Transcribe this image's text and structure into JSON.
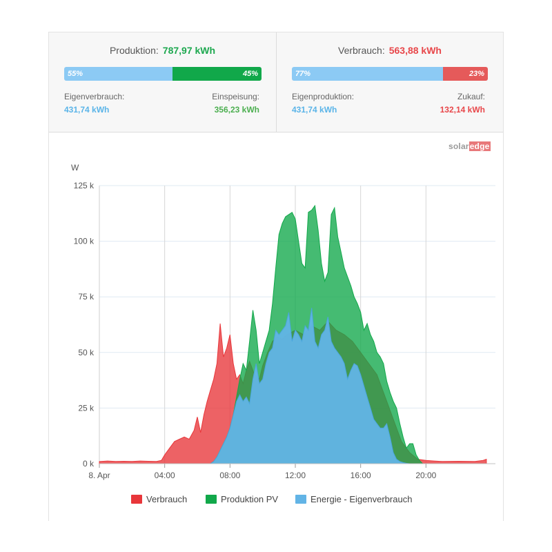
{
  "summary": {
    "production": {
      "label": "Produktion:",
      "value": "787,97 kWh",
      "self_pct_label": "55%",
      "self_pct": 55,
      "feed_pct_label": "45%",
      "feed_pct": 45,
      "self_label": "Eigenverbrauch:",
      "self_value": "431,74 kWh",
      "feed_label": "Einspeisung:",
      "feed_value": "356,23 kWh"
    },
    "consumption": {
      "label": "Verbrauch:",
      "value": "563,88 kWh",
      "self_pct_label": "77%",
      "self_pct": 77,
      "import_pct_label": "23%",
      "import_pct": 23,
      "self_label": "Eigenproduktion:",
      "self_value": "431,74 kWh",
      "import_label": "Zukauf:",
      "import_value": "132,14 kWh"
    }
  },
  "brand": {
    "part1": "solar",
    "part2": "edge"
  },
  "colors": {
    "consumption": "#e8363a",
    "production": "#11a84a",
    "self": "#62b4e6",
    "bar_blue": "#8ccaf4",
    "bar_green": "#11a84a",
    "bar_red": "#e55a5a",
    "text_blue": "#5ab4e8",
    "text_green": "#4caf50",
    "text_red": "#e8474a"
  },
  "chart_data": {
    "type": "area",
    "ylabel": "W",
    "y_unit": "W",
    "ylim": [
      0,
      125000
    ],
    "yticks": [
      0,
      25000,
      50000,
      75000,
      100000,
      125000
    ],
    "ytick_labels": [
      "0 k",
      "25 k",
      "50 k",
      "75 k",
      "100 k",
      "125 k"
    ],
    "xlim": [
      0,
      24
    ],
    "xticks": [
      0,
      4,
      8,
      12,
      16,
      20
    ],
    "xtick_labels": [
      "8. Apr",
      "04:00",
      "08:00",
      "12:00",
      "16:00",
      "20:00"
    ],
    "grid": true,
    "legend_position": "bottom",
    "series": [
      {
        "name": "Verbrauch",
        "x": [
          0,
          0.5,
          1,
          1.5,
          2,
          2.5,
          3,
          3.5,
          3.8,
          4.0,
          4.3,
          4.6,
          4.9,
          5.2,
          5.5,
          5.8,
          6.0,
          6.2,
          6.4,
          6.6,
          6.8,
          7.0,
          7.2,
          7.4,
          7.6,
          7.8,
          8.0,
          8.2,
          8.4,
          8.6,
          8.8,
          9.0,
          9.2,
          9.5,
          9.8,
          10.0,
          10.3,
          10.6,
          10.9,
          11.2,
          11.5,
          12.0,
          12.5,
          13.0,
          13.5,
          14.0,
          14.5,
          15.0,
          15.5,
          16.0,
          16.5,
          17.0,
          17.5,
          18.0,
          18.5,
          19.0,
          19.5,
          20.0,
          20.5,
          21,
          22,
          23,
          23.5,
          23.7
        ],
        "values": [
          1000,
          1200,
          1000,
          1100,
          1000,
          1200,
          1100,
          1000,
          1500,
          4000,
          7000,
          10000,
          11000,
          12000,
          11000,
          15000,
          21000,
          14000,
          22000,
          28000,
          33000,
          38000,
          45000,
          63000,
          48000,
          52000,
          58000,
          45000,
          38000,
          40000,
          36000,
          42000,
          46000,
          40000,
          38000,
          44000,
          50000,
          55000,
          57000,
          56000,
          58000,
          60000,
          58000,
          62000,
          60000,
          64000,
          60000,
          58000,
          55000,
          50000,
          45000,
          40000,
          30000,
          20000,
          10000,
          5000,
          2000,
          1500,
          1200,
          1000,
          1100,
          1000,
          1500,
          2000
        ]
      },
      {
        "name": "Produktion PV",
        "x": [
          6.8,
          7.0,
          7.2,
          7.4,
          7.6,
          7.8,
          8.0,
          8.2,
          8.4,
          8.6,
          8.8,
          9.0,
          9.2,
          9.4,
          9.6,
          9.8,
          10.0,
          10.2,
          10.4,
          10.6,
          10.8,
          11.0,
          11.2,
          11.4,
          11.6,
          11.8,
          12.0,
          12.2,
          12.4,
          12.6,
          12.8,
          13.0,
          13.2,
          13.4,
          13.6,
          13.8,
          14.0,
          14.2,
          14.4,
          14.6,
          14.8,
          15.0,
          15.2,
          15.4,
          15.6,
          15.8,
          16.0,
          16.2,
          16.4,
          16.6,
          16.8,
          17.0,
          17.2,
          17.4,
          17.6,
          17.8,
          18.0,
          18.2,
          18.4,
          18.6,
          18.8,
          19.0,
          19.2,
          19.4,
          19.6,
          19.8
        ],
        "values": [
          0,
          1000,
          3000,
          6000,
          9000,
          12000,
          16000,
          22000,
          30000,
          38000,
          45000,
          42000,
          55000,
          69000,
          60000,
          45000,
          50000,
          55000,
          60000,
          72000,
          88000,
          103000,
          108000,
          111000,
          112000,
          113000,
          110000,
          100000,
          90000,
          88000,
          113000,
          114000,
          116000,
          105000,
          90000,
          82000,
          86000,
          112000,
          115000,
          102000,
          95000,
          88000,
          84000,
          80000,
          75000,
          72000,
          68000,
          60000,
          63000,
          58000,
          55000,
          50000,
          48000,
          45000,
          37000,
          32000,
          28000,
          25000,
          18000,
          12000,
          7000,
          9000,
          9000,
          4000,
          1500,
          0
        ]
      },
      {
        "name": "Energie - Eigenverbrauch",
        "x": [
          6.8,
          7.0,
          7.2,
          7.4,
          7.6,
          7.8,
          8.0,
          8.2,
          8.4,
          8.6,
          8.8,
          9.0,
          9.2,
          9.4,
          9.6,
          9.8,
          10.0,
          10.2,
          10.4,
          10.6,
          10.8,
          11.0,
          11.2,
          11.4,
          11.6,
          11.8,
          12.0,
          12.2,
          12.4,
          12.6,
          12.8,
          13.0,
          13.2,
          13.4,
          13.6,
          13.8,
          14.0,
          14.2,
          14.4,
          14.6,
          14.8,
          15.0,
          15.2,
          15.4,
          15.6,
          15.8,
          16.0,
          16.2,
          16.4,
          16.6,
          16.8,
          17.0,
          17.2,
          17.4,
          17.6,
          17.8,
          18.0,
          18.2,
          18.4,
          18.6,
          18.8,
          19.0,
          19.2,
          19.4
        ],
        "values": [
          0,
          1000,
          3000,
          6000,
          9000,
          12000,
          16000,
          22000,
          28000,
          31000,
          28000,
          30000,
          27000,
          38000,
          45000,
          36000,
          38000,
          45000,
          50000,
          52000,
          60000,
          58000,
          60000,
          62000,
          68000,
          55000,
          60000,
          58000,
          55000,
          62000,
          60000,
          70000,
          55000,
          52000,
          58000,
          60000,
          66000,
          55000,
          52000,
          50000,
          48000,
          45000,
          38000,
          42000,
          45000,
          44000,
          40000,
          35000,
          30000,
          25000,
          20000,
          18000,
          16000,
          16000,
          18000,
          12000,
          5000,
          2000,
          1000,
          500,
          200,
          0,
          0,
          0
        ]
      }
    ]
  }
}
